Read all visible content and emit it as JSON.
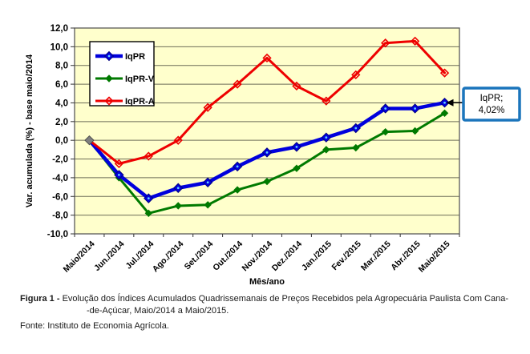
{
  "figure": {
    "caption_label": "Figura 1 -",
    "caption_line1": "Evolução dos Índices Acumulados Quadrissemanais de Preços Recebidos pela Agropecuária Paulista Com Cana-",
    "caption_line2": "-de-Açúcar, Maio/2014 a Maio/2015.",
    "fonte": "Fonte: Instituto de Economia Agrícola."
  },
  "annotation": {
    "line1": "IqPR;",
    "line2": "4,02%",
    "border_color": "#1B75BC",
    "points_to_series": "IqPR"
  },
  "chart_data": {
    "type": "line",
    "title": "",
    "xlabel": "Mês/ano",
    "ylabel": "Var. acumulada (%) - base maio/2014",
    "ylim": [
      -10,
      12
    ],
    "ytick_step": 2,
    "ytick_labels": [
      "12,0",
      "10,0",
      "8,0",
      "6,0",
      "4,0",
      "2,0",
      "0,0",
      "-2,0",
      "-4,0",
      "-6,0",
      "-8,0",
      "-10,0"
    ],
    "grid": true,
    "plot_bg": "#FFFFCC",
    "grid_color": "#6E6E58",
    "border_color": "#595959",
    "legend_position": "top-left-inside",
    "first_point_color": "#7F7F7F",
    "categories": [
      "Maio/2014",
      "Jun./2014",
      "Jul./2014",
      "Ago./2014",
      "Set./2014",
      "Out./2014",
      "Nov./2014",
      "Dez./2014",
      "Jan./2015",
      "Fev./2015",
      "Mar./2015",
      "Abr./2015",
      "Maio/2015"
    ],
    "series": [
      {
        "name": "IqPR",
        "color": "#0000DD",
        "marker": "diamond-dot",
        "line_width": 4.5,
        "values": [
          0.0,
          -3.7,
          -6.2,
          -5.1,
          -4.5,
          -2.8,
          -1.3,
          -0.7,
          0.3,
          1.3,
          3.4,
          3.4,
          4.02
        ]
      },
      {
        "name": "IqPR-V",
        "color": "#007A00",
        "marker": "diamond",
        "line_width": 3,
        "values": [
          0.0,
          -4.0,
          -7.8,
          -7.0,
          -6.9,
          -5.3,
          -4.4,
          -3.0,
          -1.0,
          -0.8,
          0.9,
          1.0,
          2.9
        ]
      },
      {
        "name": "IqPR-A",
        "color": "#EE0000",
        "marker": "diamond-open",
        "line_width": 3,
        "values": [
          0.0,
          -2.5,
          -1.7,
          0.0,
          3.5,
          6.0,
          8.8,
          5.8,
          4.2,
          7.0,
          10.4,
          10.6,
          7.2
        ]
      }
    ]
  }
}
